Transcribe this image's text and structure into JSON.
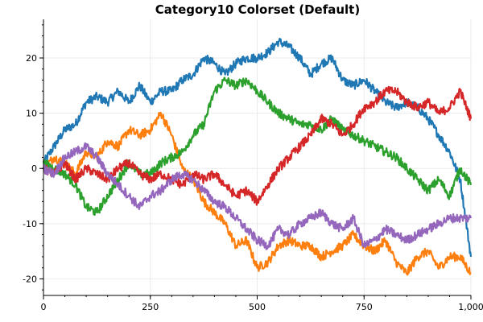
{
  "chart_data": {
    "type": "line",
    "title": "Category10 Colorset (Default)",
    "xlabel": "",
    "ylabel": "",
    "xlim": [
      0,
      1000
    ],
    "ylim": [
      -23,
      27
    ],
    "grid": true,
    "x_ticks": [
      0,
      250,
      500,
      750,
      1000
    ],
    "x_tick_labels": [
      "0",
      "250",
      "500",
      "750",
      "1,000"
    ],
    "y_ticks": [
      -20,
      -10,
      0,
      10,
      20
    ],
    "y_tick_labels": [
      "-20",
      "-10",
      "0",
      "10",
      "20"
    ],
    "series": [
      {
        "color": "#1f77b4",
        "points": [
          [
            0,
            1
          ],
          [
            25,
            4
          ],
          [
            50,
            7
          ],
          [
            75,
            8
          ],
          [
            100,
            12
          ],
          [
            125,
            13
          ],
          [
            150,
            12
          ],
          [
            175,
            14
          ],
          [
            200,
            12
          ],
          [
            225,
            15
          ],
          [
            250,
            12
          ],
          [
            275,
            14
          ],
          [
            300,
            14
          ],
          [
            325,
            16
          ],
          [
            350,
            17
          ],
          [
            375,
            20
          ],
          [
            400,
            19
          ],
          [
            425,
            17
          ],
          [
            450,
            19
          ],
          [
            475,
            20
          ],
          [
            500,
            20
          ],
          [
            525,
            21
          ],
          [
            550,
            23
          ],
          [
            575,
            22
          ],
          [
            600,
            20
          ],
          [
            625,
            17
          ],
          [
            650,
            19
          ],
          [
            675,
            20
          ],
          [
            700,
            16
          ],
          [
            725,
            15
          ],
          [
            750,
            16
          ],
          [
            775,
            14
          ],
          [
            800,
            12
          ],
          [
            825,
            11
          ],
          [
            850,
            12
          ],
          [
            875,
            11
          ],
          [
            900,
            9
          ],
          [
            925,
            6
          ],
          [
            950,
            3
          ],
          [
            975,
            -2
          ],
          [
            1000,
            -16
          ]
        ]
      },
      {
        "color": "#ff7f0e",
        "points": [
          [
            0,
            0
          ],
          [
            25,
            2
          ],
          [
            50,
            1
          ],
          [
            75,
            -1
          ],
          [
            100,
            3
          ],
          [
            125,
            2
          ],
          [
            150,
            5
          ],
          [
            175,
            4
          ],
          [
            200,
            7
          ],
          [
            225,
            6
          ],
          [
            250,
            7
          ],
          [
            275,
            10
          ],
          [
            300,
            6
          ],
          [
            325,
            0
          ],
          [
            350,
            -2
          ],
          [
            375,
            -6
          ],
          [
            400,
            -8
          ],
          [
            425,
            -10
          ],
          [
            450,
            -14
          ],
          [
            475,
            -13
          ],
          [
            500,
            -18
          ],
          [
            525,
            -17
          ],
          [
            550,
            -14
          ],
          [
            575,
            -13
          ],
          [
            600,
            -14
          ],
          [
            625,
            -14
          ],
          [
            650,
            -16
          ],
          [
            675,
            -15
          ],
          [
            700,
            -14
          ],
          [
            725,
            -12
          ],
          [
            750,
            -14
          ],
          [
            775,
            -15
          ],
          [
            800,
            -13
          ],
          [
            825,
            -17
          ],
          [
            850,
            -19
          ],
          [
            875,
            -16
          ],
          [
            900,
            -15
          ],
          [
            925,
            -18
          ],
          [
            950,
            -16
          ],
          [
            975,
            -16
          ],
          [
            1000,
            -19
          ]
        ]
      },
      {
        "color": "#2ca02c",
        "points": [
          [
            0,
            1
          ],
          [
            25,
            0
          ],
          [
            50,
            -1
          ],
          [
            75,
            -3
          ],
          [
            100,
            -7
          ],
          [
            125,
            -8
          ],
          [
            150,
            -5
          ],
          [
            175,
            -2
          ],
          [
            200,
            1
          ],
          [
            225,
            -1
          ],
          [
            250,
            -1
          ],
          [
            275,
            1
          ],
          [
            300,
            2
          ],
          [
            325,
            3
          ],
          [
            350,
            6
          ],
          [
            375,
            8
          ],
          [
            400,
            14
          ],
          [
            425,
            16
          ],
          [
            450,
            15
          ],
          [
            475,
            16
          ],
          [
            500,
            14
          ],
          [
            525,
            12
          ],
          [
            550,
            10
          ],
          [
            575,
            9
          ],
          [
            600,
            8
          ],
          [
            625,
            8
          ],
          [
            650,
            7
          ],
          [
            675,
            9
          ],
          [
            700,
            7
          ],
          [
            725,
            6
          ],
          [
            750,
            5
          ],
          [
            775,
            4
          ],
          [
            800,
            3
          ],
          [
            825,
            2
          ],
          [
            850,
            0
          ],
          [
            875,
            -2
          ],
          [
            900,
            -4
          ],
          [
            925,
            -2
          ],
          [
            950,
            -5
          ],
          [
            975,
            0
          ],
          [
            1000,
            -3
          ]
        ]
      },
      {
        "color": "#d62728",
        "points": [
          [
            0,
            0
          ],
          [
            25,
            -1
          ],
          [
            50,
            1
          ],
          [
            75,
            -2
          ],
          [
            100,
            0
          ],
          [
            125,
            -1
          ],
          [
            150,
            -2
          ],
          [
            175,
            0
          ],
          [
            200,
            1
          ],
          [
            225,
            -1
          ],
          [
            250,
            -2
          ],
          [
            275,
            -1
          ],
          [
            300,
            -2
          ],
          [
            325,
            -3
          ],
          [
            350,
            -1
          ],
          [
            375,
            -2
          ],
          [
            400,
            -1
          ],
          [
            425,
            -3
          ],
          [
            450,
            -5
          ],
          [
            475,
            -4
          ],
          [
            500,
            -6
          ],
          [
            525,
            -3
          ],
          [
            550,
            0
          ],
          [
            575,
            2
          ],
          [
            600,
            4
          ],
          [
            625,
            6
          ],
          [
            650,
            9
          ],
          [
            675,
            8
          ],
          [
            700,
            6
          ],
          [
            725,
            8
          ],
          [
            750,
            11
          ],
          [
            775,
            12
          ],
          [
            800,
            14
          ],
          [
            825,
            14
          ],
          [
            850,
            12
          ],
          [
            875,
            11
          ],
          [
            900,
            12
          ],
          [
            925,
            10
          ],
          [
            950,
            11
          ],
          [
            975,
            14
          ],
          [
            1000,
            9
          ]
        ]
      },
      {
        "color": "#9467bd",
        "points": [
          [
            0,
            0
          ],
          [
            25,
            -1
          ],
          [
            50,
            2
          ],
          [
            75,
            3
          ],
          [
            100,
            4
          ],
          [
            125,
            2
          ],
          [
            150,
            -1
          ],
          [
            175,
            -3
          ],
          [
            200,
            -5
          ],
          [
            225,
            -7
          ],
          [
            250,
            -5
          ],
          [
            275,
            -4
          ],
          [
            300,
            -2
          ],
          [
            325,
            -1
          ],
          [
            350,
            -2
          ],
          [
            375,
            -4
          ],
          [
            400,
            -6
          ],
          [
            425,
            -7
          ],
          [
            450,
            -9
          ],
          [
            475,
            -11
          ],
          [
            500,
            -13
          ],
          [
            525,
            -14
          ],
          [
            550,
            -11
          ],
          [
            575,
            -12
          ],
          [
            600,
            -10
          ],
          [
            625,
            -9
          ],
          [
            650,
            -8
          ],
          [
            675,
            -10
          ],
          [
            700,
            -11
          ],
          [
            725,
            -9
          ],
          [
            750,
            -14
          ],
          [
            775,
            -13
          ],
          [
            800,
            -11
          ],
          [
            825,
            -12
          ],
          [
            850,
            -13
          ],
          [
            875,
            -12
          ],
          [
            900,
            -11
          ],
          [
            925,
            -10
          ],
          [
            950,
            -9
          ],
          [
            975,
            -9
          ],
          [
            1000,
            -9
          ]
        ]
      }
    ]
  }
}
